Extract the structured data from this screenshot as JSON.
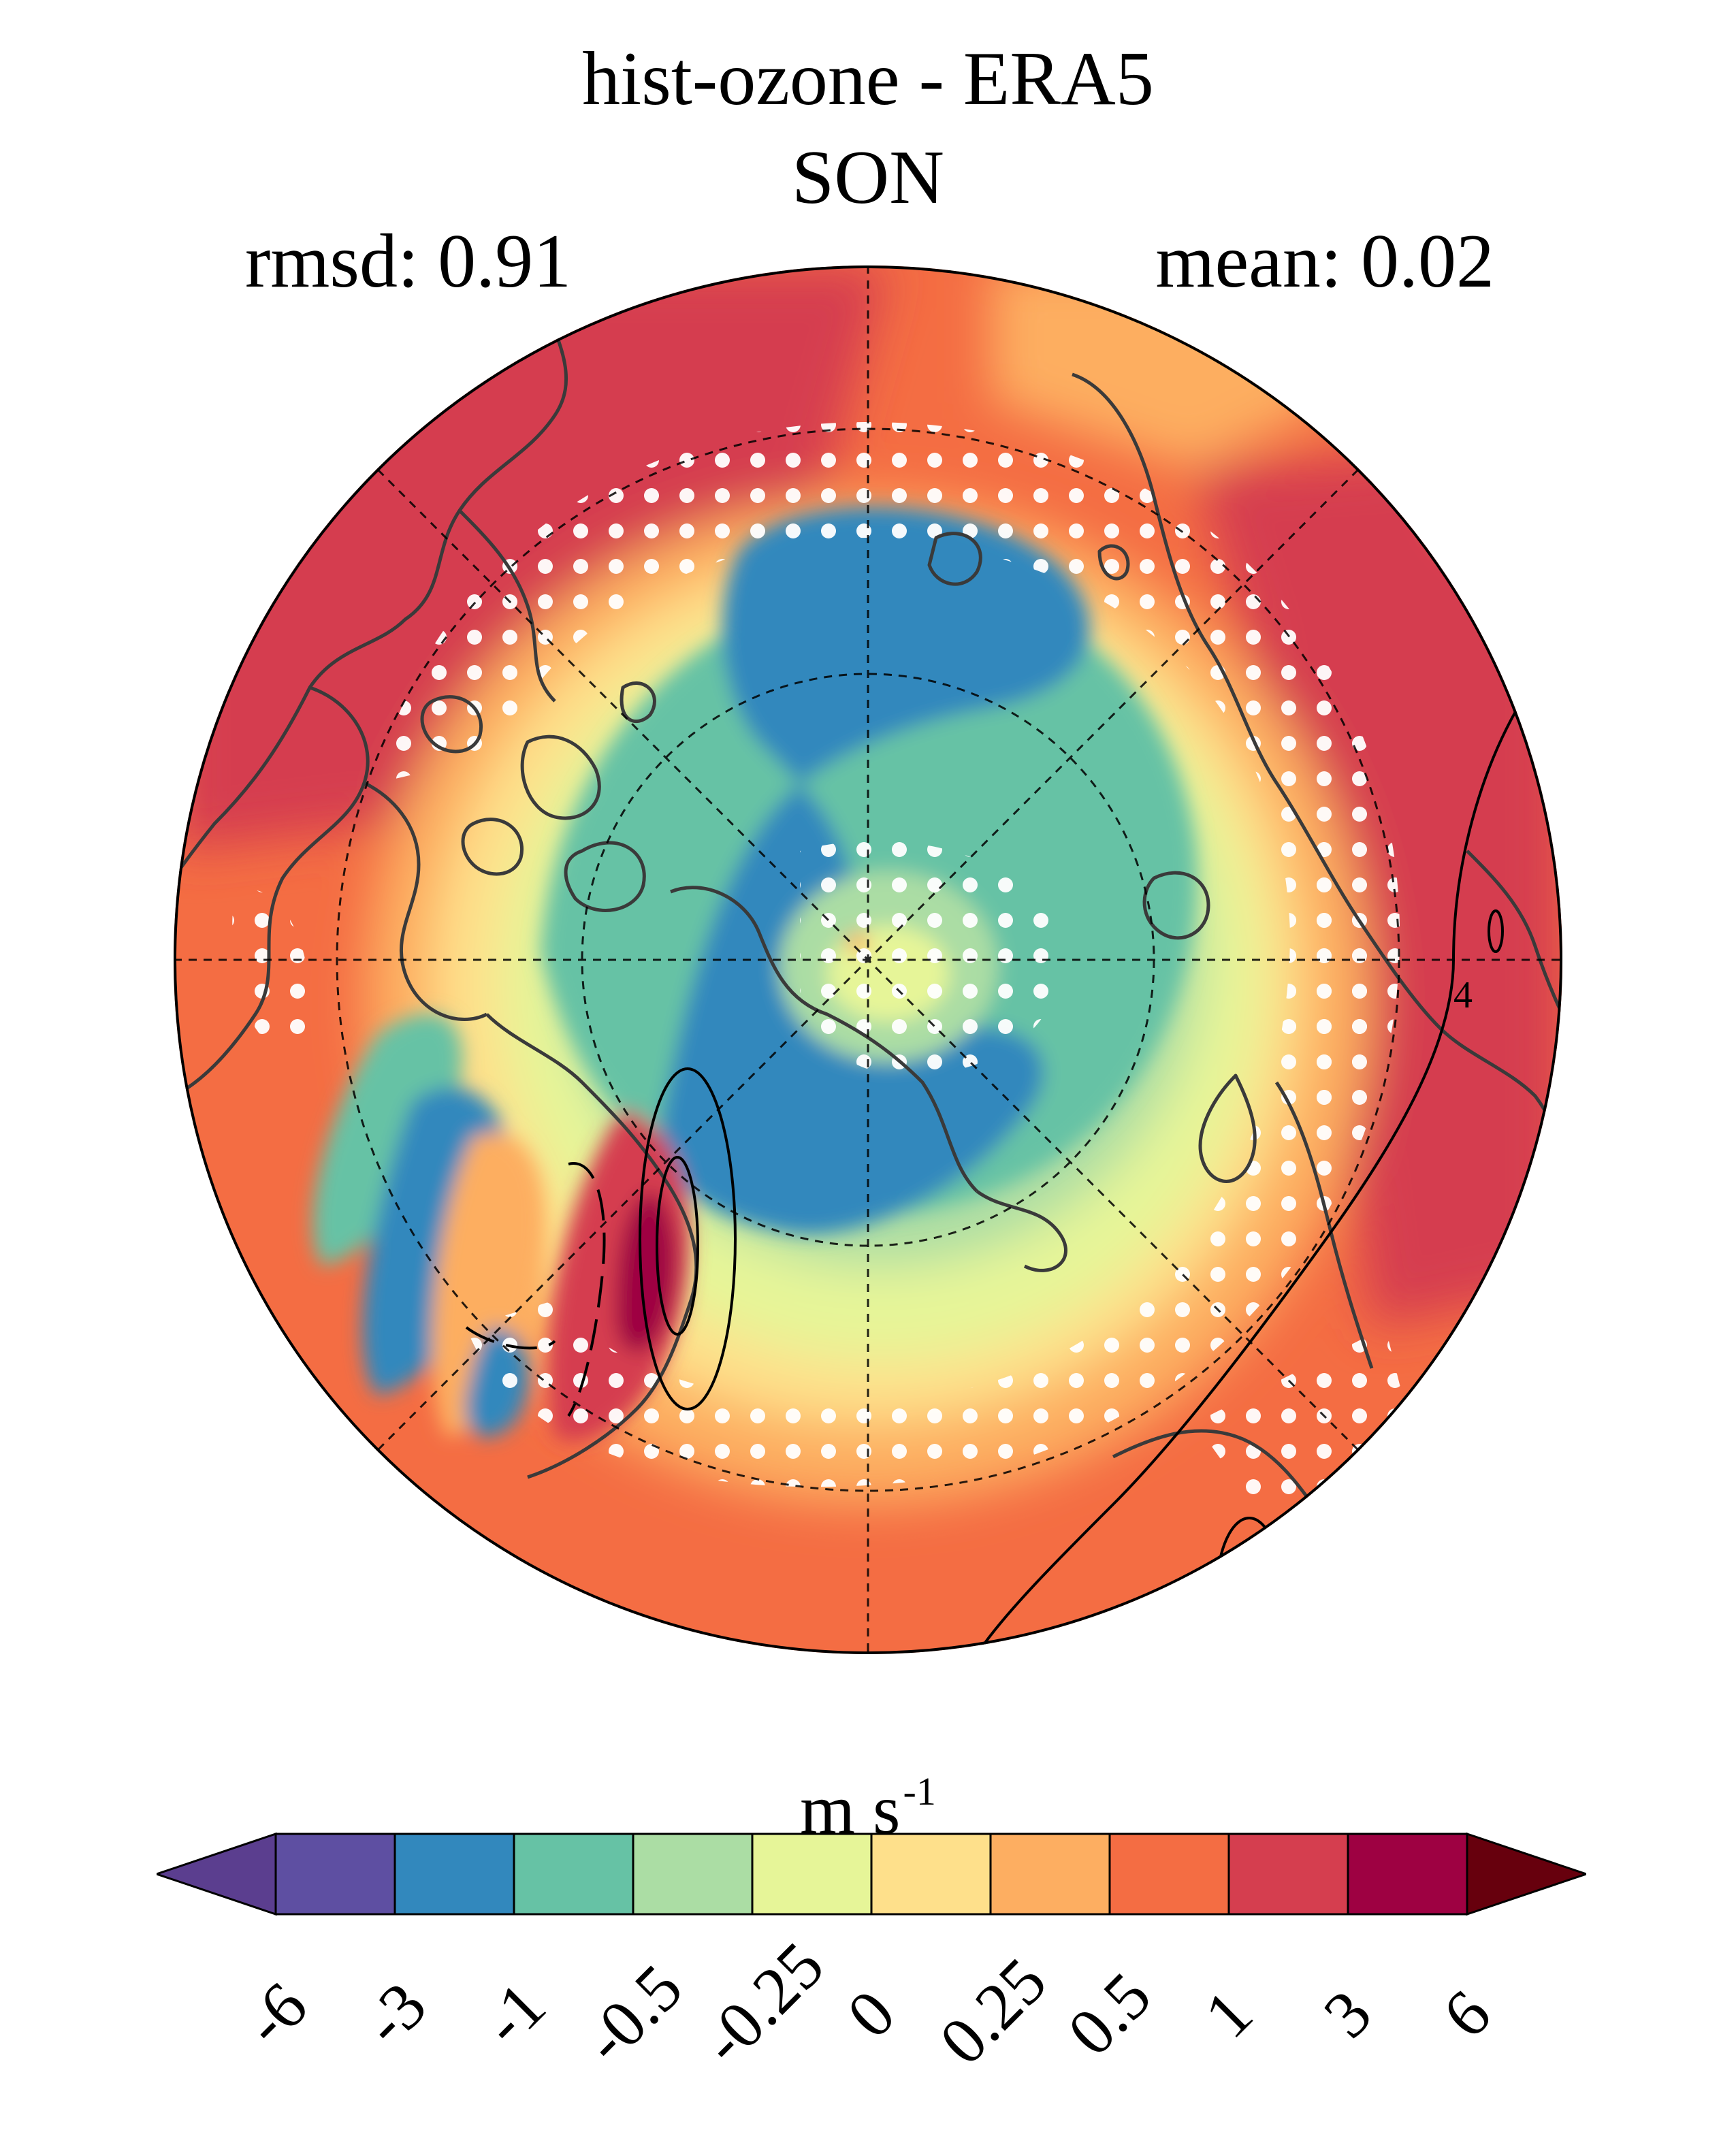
{
  "title": "hist-ozone - ERA5",
  "season": "SON",
  "stats": {
    "rmsd": "rmsd: 0.91",
    "mean": "mean: 0.02"
  },
  "map": {
    "projection": "north polar stereographic",
    "ocean_fill": "none",
    "coastlines": true,
    "graticule": "dashed",
    "stippling": "white dots mark regions",
    "contour_label": "4"
  },
  "colorbar": {
    "units": "m s",
    "units_exponent": "-1",
    "ticks": [
      "-6",
      "-3",
      "-1",
      "-0.5",
      "-0.25",
      "0",
      "0.25",
      "0.5",
      "1",
      "3",
      "6"
    ],
    "colors": [
      "#5b3e8f",
      "#5e4fa2",
      "#3288bd",
      "#66c2a5",
      "#abdda4",
      "#e6f598",
      "#fee08b",
      "#fdae61",
      "#f46d43",
      "#d53e4f",
      "#9e0142",
      "#67000d"
    ],
    "extend": "both"
  }
}
